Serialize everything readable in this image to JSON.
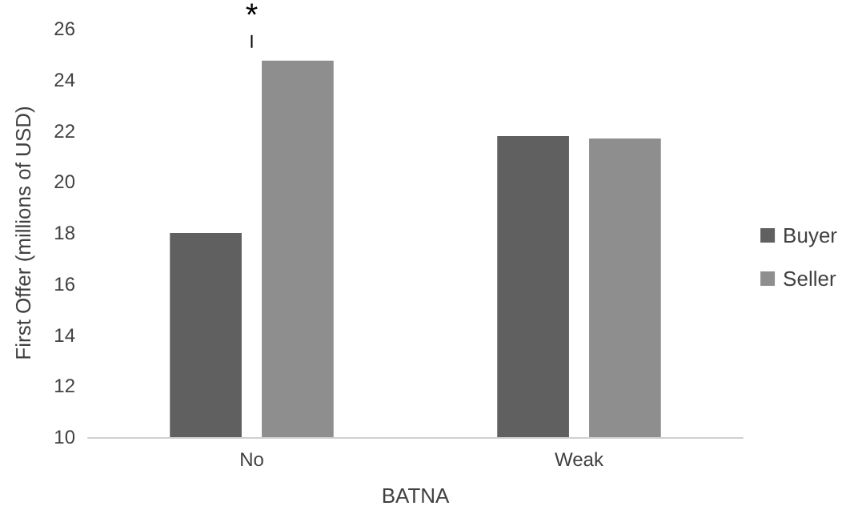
{
  "chart_data": {
    "type": "bar",
    "xlabel": "BATNA",
    "ylabel": "First Offer (millions of USD)",
    "categories": [
      "No",
      "Weak"
    ],
    "series": [
      {
        "name": "Buyer",
        "color": "#606060",
        "values": [
          18.0,
          21.8
        ]
      },
      {
        "name": "Seller",
        "color": "#8e8e8e",
        "values": [
          24.75,
          21.7
        ]
      }
    ],
    "ylim": [
      10,
      26
    ],
    "yticks": [
      10,
      12,
      14,
      16,
      18,
      20,
      22,
      24,
      26
    ],
    "grid": false,
    "legend": "right",
    "annotations": [
      "*"
    ]
  }
}
